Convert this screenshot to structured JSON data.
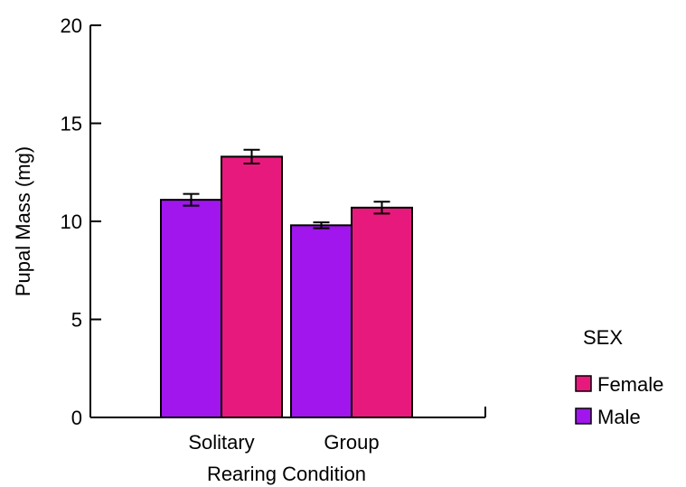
{
  "chart_data": {
    "type": "bar",
    "title": "",
    "xlabel": "Rearing Condition",
    "ylabel": "Pupal Mass (mg)",
    "categories": [
      "Solitary",
      "Group"
    ],
    "ylim": [
      0,
      20
    ],
    "yticks": [
      0,
      5,
      10,
      15,
      20
    ],
    "grid": false,
    "legend": {
      "title": "SEX",
      "placement": "right",
      "entries": [
        {
          "name": "Female",
          "color": "#e8197d"
        },
        {
          "name": "Male",
          "color": "#a016ec"
        }
      ]
    },
    "series": [
      {
        "name": "Male",
        "color": "#a016ec",
        "values": [
          11.1,
          9.8
        ],
        "errors": [
          0.3,
          0.15
        ]
      },
      {
        "name": "Female",
        "color": "#e8197d",
        "values": [
          13.3,
          10.7
        ],
        "errors": [
          0.35,
          0.3
        ]
      }
    ]
  }
}
